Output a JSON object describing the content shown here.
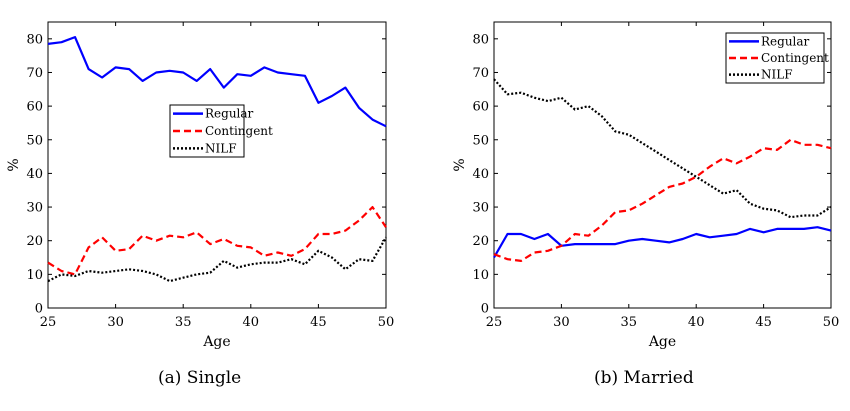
{
  "chart_data": [
    {
      "type": "line",
      "caption": "(a) Single",
      "xlabel": "Age",
      "ylabel": "%",
      "xlim": [
        25,
        50
      ],
      "ylim": [
        0,
        85
      ],
      "xticks": [
        25,
        30,
        35,
        40,
        45,
        50
      ],
      "yticks": [
        0,
        10,
        20,
        30,
        40,
        50,
        60,
        70,
        80
      ],
      "grid": false,
      "legend_position": "center-right",
      "x": [
        25,
        26,
        27,
        28,
        29,
        30,
        31,
        32,
        33,
        34,
        35,
        36,
        37,
        38,
        39,
        40,
        41,
        42,
        43,
        44,
        45,
        46,
        47,
        48,
        49,
        50
      ],
      "series": [
        {
          "name": "Regular",
          "color": "#0000ff",
          "style": "solid",
          "values": [
            78.5,
            79,
            80.5,
            71,
            68.5,
            71.5,
            71,
            67.5,
            70,
            70.5,
            70,
            67.5,
            71,
            65.5,
            69.5,
            69,
            71.5,
            70,
            69.5,
            69,
            61,
            63,
            65.5,
            59.5,
            56,
            54
          ]
        },
        {
          "name": "Contingent",
          "color": "#ff0000",
          "style": "dashed",
          "values": [
            13.5,
            11,
            10,
            18,
            21,
            17,
            17.5,
            21.5,
            20,
            21.5,
            21,
            22.5,
            19,
            20.5,
            18.5,
            18,
            15.5,
            16.5,
            15.5,
            17.5,
            22,
            22,
            23,
            26,
            30,
            24
          ]
        },
        {
          "name": "NILF",
          "color": "#000000",
          "style": "dotted",
          "values": [
            8,
            10,
            9.5,
            11,
            10.5,
            11,
            11.5,
            11,
            10,
            8,
            9,
            10,
            10.5,
            14,
            12,
            13,
            13.5,
            13.5,
            14.5,
            13,
            17,
            15,
            11.5,
            14.5,
            14,
            21
          ]
        }
      ]
    },
    {
      "type": "line",
      "caption": "(b) Married",
      "xlabel": "Age",
      "ylabel": "%",
      "xlim": [
        25,
        50
      ],
      "ylim": [
        0,
        85
      ],
      "xticks": [
        25,
        30,
        35,
        40,
        45,
        50
      ],
      "yticks": [
        0,
        10,
        20,
        30,
        40,
        50,
        60,
        70,
        80
      ],
      "grid": false,
      "legend_position": "top-right",
      "x": [
        25,
        26,
        27,
        28,
        29,
        30,
        31,
        32,
        33,
        34,
        35,
        36,
        37,
        38,
        39,
        40,
        41,
        42,
        43,
        44,
        45,
        46,
        47,
        48,
        49,
        50
      ],
      "series": [
        {
          "name": "Regular",
          "color": "#0000ff",
          "style": "solid",
          "values": [
            15,
            22,
            22,
            20.5,
            22,
            18.5,
            19,
            19,
            19,
            19,
            20,
            20.5,
            20,
            19.5,
            20.5,
            22,
            21,
            21.5,
            22,
            23.5,
            22.5,
            23.5,
            23.5,
            23.5,
            24,
            23
          ]
        },
        {
          "name": "Contingent",
          "color": "#ff0000",
          "style": "dashed",
          "values": [
            16,
            14.5,
            14,
            16.5,
            17,
            18.5,
            22,
            21.5,
            24.5,
            28.5,
            29,
            31,
            33.5,
            36,
            37,
            39,
            42,
            44.5,
            43,
            45,
            47.5,
            47,
            50,
            48.5,
            48.5,
            47.5
          ]
        },
        {
          "name": "NILF",
          "color": "#000000",
          "style": "dotted",
          "values": [
            68,
            63.5,
            64,
            62.5,
            61.5,
            62.5,
            59,
            60,
            57,
            52.5,
            51.5,
            49,
            46.5,
            44,
            41.5,
            39,
            36.5,
            34,
            35,
            31,
            29.5,
            29,
            27,
            27.5,
            27.5,
            30
          ]
        }
      ]
    }
  ]
}
